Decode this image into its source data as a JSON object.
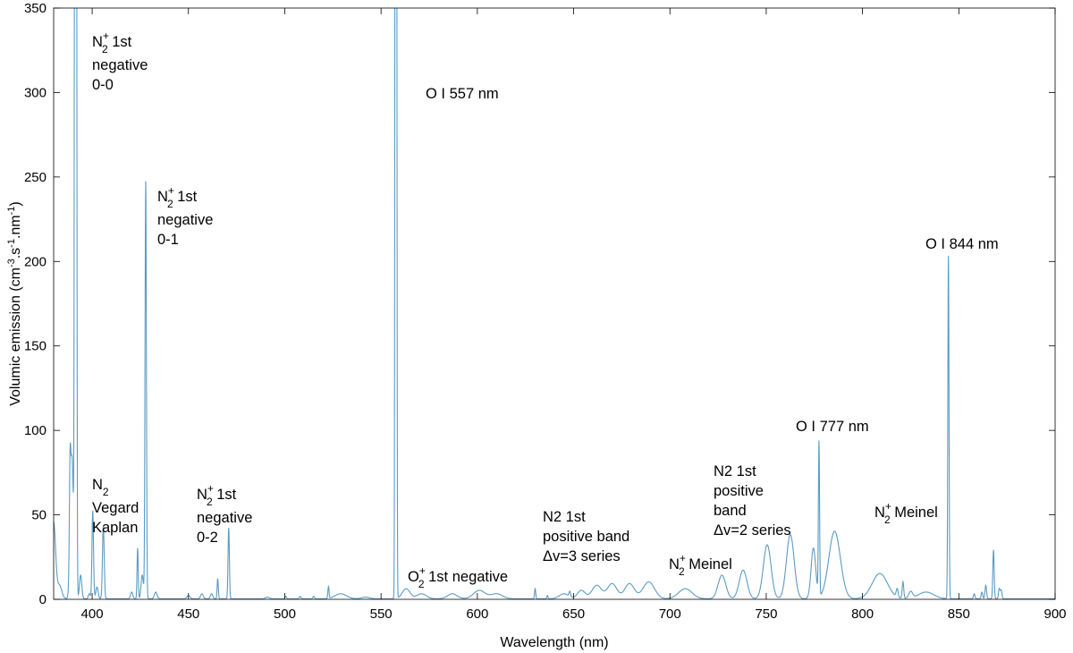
{
  "chart_data": {
    "type": "line",
    "title": "",
    "xlabel": "Wavelength (nm)",
    "ylabel": "Volumic emission (cm-3.s-1.nm-1)",
    "ylabel_parts": [
      "Volumic emission (cm",
      "-3",
      ".s",
      "-1",
      ".nm",
      "-1",
      ")"
    ],
    "xlim": [
      380,
      900
    ],
    "ylim": [
      0,
      350
    ],
    "xticks": [
      "400",
      "450",
      "500",
      "550",
      "600",
      "650",
      "700",
      "750",
      "800",
      "850",
      "900"
    ],
    "yticks": [
      "0",
      "50",
      "100",
      "150",
      "200",
      "250",
      "300",
      "350"
    ],
    "grid": false,
    "line_color": "#5b9bc4",
    "series": [
      {
        "baseline": 0.3,
        "peaks": [
          [
            380,
            45,
            1.0
          ],
          [
            383,
            8,
            1.2
          ],
          [
            388.5,
            49,
            0.35
          ],
          [
            389.5,
            84,
            0.8
          ],
          [
            391.4,
            2000,
            0.35
          ],
          [
            394,
            14,
            0.6
          ],
          [
            398.5,
            3,
            0.5
          ],
          [
            400.3,
            52,
            0.4
          ],
          [
            402.5,
            7,
            0.6
          ],
          [
            405.8,
            43,
            0.45
          ],
          [
            420.5,
            4,
            0.6
          ],
          [
            423.6,
            30,
            0.3
          ],
          [
            426,
            14,
            0.6
          ],
          [
            427.8,
            247,
            0.35
          ],
          [
            433,
            4,
            0.7
          ],
          [
            450,
            2,
            0.8
          ],
          [
            457,
            3,
            0.7
          ],
          [
            462,
            3,
            0.6
          ],
          [
            465.2,
            12,
            0.3
          ],
          [
            470.9,
            42,
            0.35
          ],
          [
            491,
            1,
            1.0
          ],
          [
            500.5,
            1.5,
            0.4
          ],
          [
            508,
            1.5,
            0.4
          ],
          [
            515,
            1.5,
            0.4
          ],
          [
            522.7,
            7,
            0.3
          ],
          [
            529,
            3,
            3.0
          ],
          [
            542,
            1,
            2.0
          ],
          [
            557.7,
            2000,
            0.3
          ],
          [
            563,
            6,
            2.0
          ],
          [
            571,
            3,
            2.5
          ],
          [
            587,
            3,
            2.5
          ],
          [
            601,
            5,
            3.0
          ],
          [
            610,
            3,
            3.0
          ],
          [
            630,
            6,
            0.3
          ],
          [
            636.4,
            2,
            0.3
          ],
          [
            645,
            3,
            2.5
          ],
          [
            648,
            3,
            0.4
          ],
          [
            654,
            5,
            2.0
          ],
          [
            662,
            8,
            2.5
          ],
          [
            670,
            9,
            2.5
          ],
          [
            679,
            9,
            2.5
          ],
          [
            689,
            10,
            3.0
          ],
          [
            708,
            6,
            3.5
          ],
          [
            727,
            14,
            2.0
          ],
          [
            738,
            17,
            2.0
          ],
          [
            750.5,
            32,
            2.0
          ],
          [
            762.5,
            38,
            2.0
          ],
          [
            774.5,
            30,
            1.2
          ],
          [
            777.4,
            91,
            0.3
          ],
          [
            785.5,
            40,
            3.0
          ],
          [
            809,
            15,
            4.0
          ],
          [
            818,
            5,
            0.5
          ],
          [
            821,
            10,
            0.4
          ],
          [
            825,
            4,
            1.0
          ],
          [
            833,
            4,
            4.0
          ],
          [
            844.6,
            203,
            0.3
          ],
          [
            858,
            3,
            0.4
          ],
          [
            862,
            4,
            0.4
          ],
          [
            864,
            8,
            0.4
          ],
          [
            868,
            29,
            0.35
          ],
          [
            871,
            6,
            0.4
          ],
          [
            872,
            5,
            0.4
          ]
        ]
      }
    ],
    "annotations": [
      {
        "base": "N",
        "sub": "2",
        "sup": "+",
        "rest": " 1st",
        "lines": [
          "negative",
          "0-0"
        ]
      },
      {
        "base": "O I 557 nm",
        "sub": "",
        "sup": "",
        "rest": "",
        "lines": []
      },
      {
        "base": "N",
        "sub": "2",
        "sup": "+",
        "rest": " 1st",
        "lines": [
          "negative",
          "0-1"
        ]
      },
      {
        "base": "O I 844 nm",
        "sub": "",
        "sup": "",
        "rest": "",
        "lines": []
      },
      {
        "base": "O I 777 nm",
        "sub": "",
        "sup": "",
        "rest": "",
        "lines": []
      },
      {
        "base": "N",
        "sub": "2",
        "sup": "",
        "rest": "",
        "lines": [
          "Vegard",
          "Kaplan"
        ]
      },
      {
        "base": "N",
        "sub": "2",
        "sup": "+",
        "rest": " 1st",
        "lines": [
          "negative",
          "0-2"
        ]
      },
      {
        "base": "N2 1st",
        "sub": "",
        "sup": "",
        "rest": "",
        "lines": [
          "positive",
          "band",
          "Δv=2 series"
        ]
      },
      {
        "base": "N2 1st",
        "sub": "",
        "sup": "",
        "rest": "",
        "lines": [
          "positive band",
          "Δv=3 series"
        ]
      },
      {
        "base": "N",
        "sub": "2",
        "sup": "+",
        "rest": " Meinel",
        "lines": []
      },
      {
        "base": "N",
        "sub": "2",
        "sup": "+",
        "rest": " Meinel",
        "lines": []
      },
      {
        "base": "O",
        "sub": "2",
        "sup": "+",
        "rest": " 1st negative",
        "lines": []
      }
    ]
  }
}
